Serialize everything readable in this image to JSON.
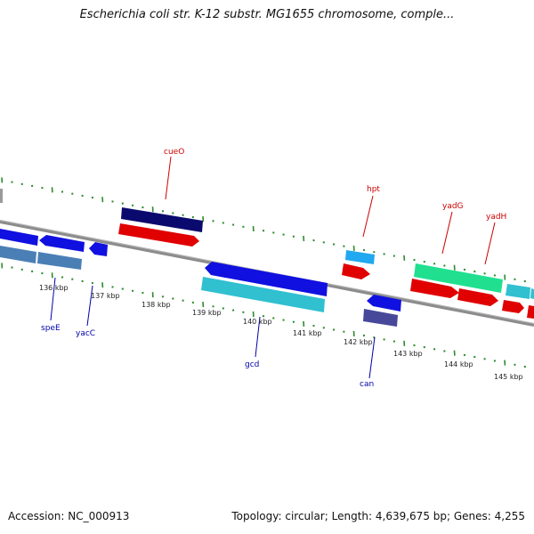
{
  "title": "Escherichia coli str. K-12 substr. MG1655 chromosome, comple...",
  "footer": {
    "accession": "Accession: NC_000913",
    "summary": "Topology: circular; Length: 4,639,675 bp; Genes: 4,255"
  },
  "colors": {
    "backbone": "#8c8c8c",
    "tick_dots": "#2e8b2e",
    "fwd_label": "#cc0000",
    "rev_label": "#0000aa",
    "navy": "#0a0a6e",
    "red": "#e00000",
    "blue": "#1010e0",
    "steel": "#4a7fb5",
    "cyan": "#30c0d0",
    "sky": "#20a8f0",
    "green": "#20e090",
    "slate": "#48489a"
  },
  "axis": {
    "ticks": [
      "136 kbp",
      "137 kbp",
      "138 kbp",
      "139 kbp",
      "140 kbp",
      "141 kbp",
      "142 kbp",
      "143 kbp",
      "144 kbp",
      "145 kbp"
    ]
  },
  "gene_labels": {
    "forward": [
      "cueO",
      "hpt",
      "yadG",
      "yadH"
    ],
    "reverse": [
      "speE",
      "yacC",
      "gcd",
      "can"
    ]
  }
}
